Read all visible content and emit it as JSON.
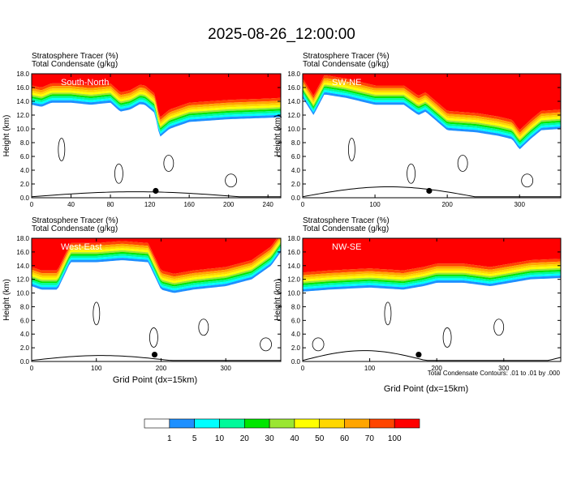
{
  "title": "2025-08-26_12:00:00",
  "panel_header_left": "Stratosphere Tracer   (%)",
  "panel_header_left_2": "Total Condensate   (g/kg)",
  "ylabel": "Height (km)",
  "xlabel": "Grid Point (dx=15km)",
  "contour_note": "Total Condensate Contours: .01 to .01 by .000",
  "contour_label": "0.01",
  "colorbar": {
    "colors": [
      "#ffffff",
      "#1e90ff",
      "#00ffff",
      "#00fa9a",
      "#00e600",
      "#9ae632",
      "#ffff00",
      "#ffd700",
      "#ffa500",
      "#ff4500",
      "#ff0000"
    ],
    "labels": [
      "1",
      "5",
      "10",
      "20",
      "30",
      "40",
      "50",
      "60",
      "70",
      "100"
    ]
  },
  "chart_data": [
    {
      "type": "heatmap",
      "panel_label": "South-North",
      "xlim": [
        0,
        253
      ],
      "ylim": [
        0,
        18
      ],
      "xticks": [
        "0",
        "40",
        "80",
        "120",
        "160",
        "200",
        "240"
      ],
      "xtick_values": [
        0,
        40,
        80,
        120,
        160,
        200,
        240
      ],
      "yticks": [
        "0.0",
        "2.0",
        "4.0",
        "6.0",
        "8.0",
        "10.0",
        "12.0",
        "14.0",
        "16.0",
        "18.0"
      ],
      "tracer_base_km_profile": {
        "x": [
          0,
          10,
          20,
          40,
          60,
          80,
          90,
          100,
          110,
          115,
          125,
          130,
          140,
          160,
          200,
          240,
          253
        ],
        "y": [
          13.5,
          13.2,
          13.8,
          13.8,
          13.5,
          13.8,
          12.5,
          12.8,
          13.6,
          13.5,
          12.3,
          8.8,
          10.0,
          11.0,
          11.4,
          11.6,
          11.7
        ]
      },
      "surface_marker": {
        "x": 126,
        "y": 1.0
      }
    },
    {
      "type": "heatmap",
      "panel_label": "SW-NE",
      "xlim": [
        0,
        357
      ],
      "ylim": [
        0,
        18
      ],
      "xticks": [
        "0",
        "100",
        "200",
        "300"
      ],
      "xtick_values": [
        0,
        100,
        200,
        300
      ],
      "yticks": [
        "0.0",
        "2.0",
        "4.0",
        "6.0",
        "8.0",
        "10.0",
        "12.0",
        "14.0",
        "16.0",
        "18.0"
      ],
      "tracer_base_km_profile": {
        "x": [
          0,
          15,
          30,
          60,
          100,
          140,
          160,
          170,
          200,
          240,
          270,
          290,
          300,
          315,
          330,
          357
        ],
        "y": [
          14.5,
          12.0,
          15.0,
          14.5,
          13.5,
          13.5,
          12.0,
          12.5,
          9.8,
          9.5,
          9.0,
          8.5,
          7.0,
          8.5,
          9.8,
          10.0
        ]
      },
      "surface_marker": {
        "x": 175,
        "y": 1.0
      }
    },
    {
      "type": "heatmap",
      "panel_label": "West-East",
      "xlim": [
        0,
        385
      ],
      "ylim": [
        0,
        18
      ],
      "xticks": [
        "0",
        "100",
        "200",
        "300"
      ],
      "xtick_values": [
        0,
        100,
        200,
        300
      ],
      "yticks": [
        "0.0",
        "2.0",
        "4.0",
        "6.0",
        "8.0",
        "10.0",
        "12.0",
        "14.0",
        "16.0",
        "18.0"
      ],
      "tracer_base_km_profile": {
        "x": [
          0,
          15,
          40,
          60,
          100,
          140,
          180,
          200,
          220,
          250,
          300,
          340,
          370,
          385
        ],
        "y": [
          11.0,
          10.5,
          10.5,
          14.5,
          14.5,
          14.8,
          14.5,
          10.5,
          10.0,
          10.5,
          11.0,
          12.0,
          14.0,
          16.0
        ]
      },
      "surface_marker": {
        "x": 190,
        "y": 1.0
      }
    },
    {
      "type": "heatmap",
      "panel_label": "NW-SE",
      "xlim": [
        0,
        385
      ],
      "ylim": [
        0,
        18
      ],
      "xticks": [
        "0",
        "100",
        "200",
        "300"
      ],
      "xtick_values": [
        0,
        100,
        200,
        300
      ],
      "yticks": [
        "0.0",
        "2.0",
        "4.0",
        "6.0",
        "8.0",
        "10.0",
        "12.0",
        "14.0",
        "16.0",
        "18.0"
      ],
      "tracer_base_km_profile": {
        "x": [
          0,
          40,
          100,
          150,
          180,
          200,
          240,
          280,
          340,
          385
        ],
        "y": [
          10.2,
          10.5,
          10.8,
          10.5,
          11.0,
          11.5,
          11.5,
          11.0,
          12.0,
          12.2
        ]
      },
      "surface_marker": {
        "x": 173,
        "y": 1.0
      }
    }
  ]
}
